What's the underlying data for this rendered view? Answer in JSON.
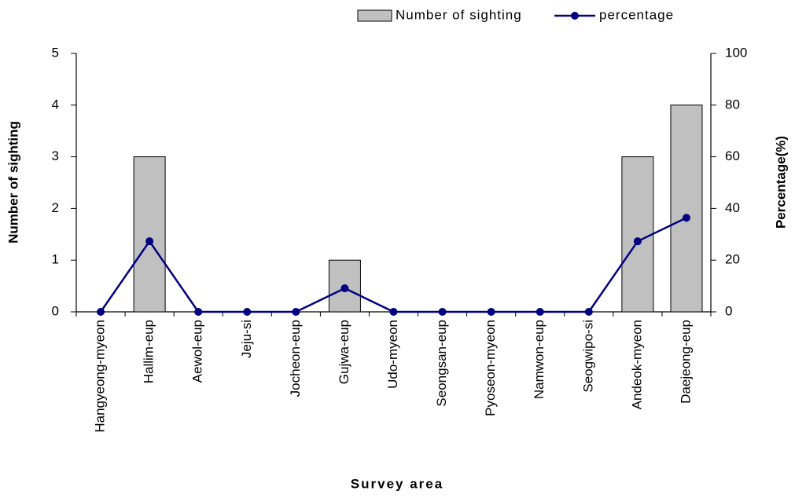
{
  "chart_data": {
    "type": "bar",
    "x_label": "Survey area",
    "y_label": "Number of sighting",
    "y2_label": "Percentage(%)",
    "categories": [
      "Hangyeong-myeon",
      "Hallim-eup",
      "Aewol-eup",
      "Jeju-si",
      "Jocheon-eup",
      "Gujwa-eup",
      "Udo-myeon",
      "Seongsan-eup",
      "Pyoseon-myeon",
      "Namwon-eup",
      "Seogwipo-si",
      "Andeok-myeon",
      "Daejeong-eup"
    ],
    "series": [
      {
        "name": "Number of sighting",
        "type": "bar",
        "color": "#c0c0c0",
        "values": [
          0,
          3,
          0,
          0,
          0,
          1,
          0,
          0,
          0,
          0,
          0,
          3,
          4
        ]
      },
      {
        "name": "percentage",
        "type": "line",
        "axis": "y2",
        "color": "#000080",
        "values": [
          0,
          27.3,
          0,
          0,
          0,
          9.1,
          0,
          0,
          0,
          0,
          0,
          27.3,
          36.4
        ]
      }
    ],
    "ylim": [
      0,
      5
    ],
    "yticks": [
      0,
      1,
      2,
      3,
      4,
      5
    ],
    "y2lim": [
      0,
      100
    ],
    "y2ticks": [
      0,
      20,
      40,
      60,
      80,
      100
    ],
    "grid": false,
    "legend": "top-right"
  }
}
